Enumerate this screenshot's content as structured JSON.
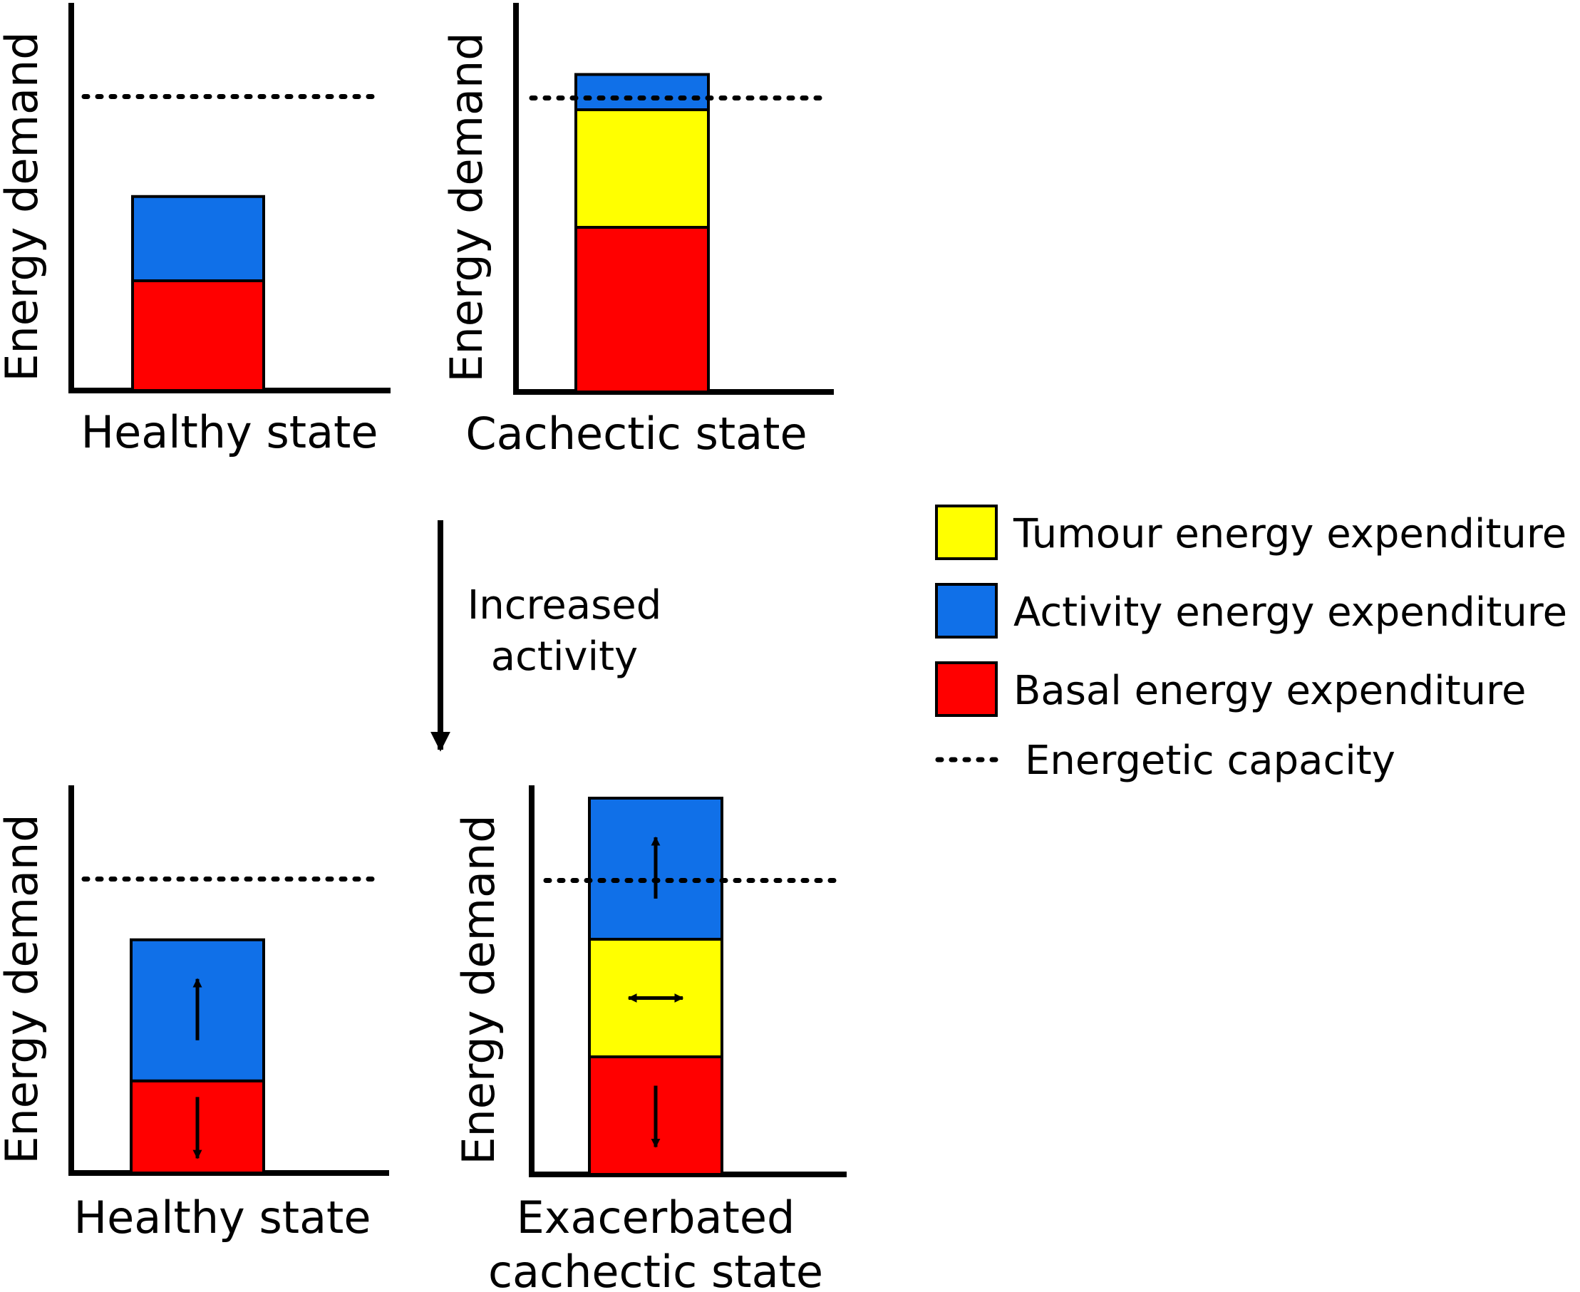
{
  "colors": {
    "tumour": "#ffff00",
    "activity": "#1070e8",
    "basal": "#ff0000",
    "ink": "#000000"
  },
  "chart_data": [
    {
      "type": "bar",
      "stacked": true,
      "title": "",
      "ylabel": "Energy demand",
      "xlabel_lines": [
        "Healthy state"
      ],
      "ylim": [
        0,
        100
      ],
      "capacity": 75,
      "stack": [
        {
          "component": "basal",
          "value": 28,
          "change": "none"
        },
        {
          "component": "activity",
          "value": 21.5,
          "change": "none"
        }
      ]
    },
    {
      "type": "bar",
      "stacked": true,
      "title": "",
      "ylabel": "Energy demand",
      "xlabel_lines": [
        "Cachectic state"
      ],
      "ylim": [
        0,
        100
      ],
      "capacity": 75,
      "stack": [
        {
          "component": "basal",
          "value": 42,
          "change": "none"
        },
        {
          "component": "tumour",
          "value": 30,
          "change": "none"
        },
        {
          "component": "activity",
          "value": 9,
          "change": "none"
        }
      ]
    },
    {
      "type": "bar",
      "stacked": true,
      "title": "",
      "ylabel": "Energy demand",
      "xlabel_lines": [
        "Healthy state"
      ],
      "ylim": [
        0,
        100
      ],
      "capacity": 75,
      "stack": [
        {
          "component": "basal",
          "value": 23.5,
          "change": "decrease"
        },
        {
          "component": "activity",
          "value": 36,
          "change": "increase"
        }
      ]
    },
    {
      "type": "bar",
      "stacked": true,
      "title": "",
      "ylabel": "Energy demand",
      "xlabel_lines": [
        "Exacerbated",
        "cachectic state"
      ],
      "ylim": [
        0,
        100
      ],
      "capacity": 75,
      "stack": [
        {
          "component": "basal",
          "value": 30,
          "change": "decrease"
        },
        {
          "component": "tumour",
          "value": 30,
          "change": "unchanged"
        },
        {
          "component": "activity",
          "value": 36,
          "change": "increase"
        }
      ]
    }
  ],
  "transition": {
    "label_lines": [
      "Increased",
      "activity"
    ]
  },
  "legend": {
    "items": [
      {
        "component": "tumour",
        "kind": "swatch",
        "label": "Tumour energy expenditure"
      },
      {
        "component": "activity",
        "kind": "swatch",
        "label": "Activity energy expenditure"
      },
      {
        "component": "basal",
        "kind": "swatch",
        "label": "Basal energy expenditure"
      },
      {
        "component": "capacity",
        "kind": "dotted",
        "label": "Energetic capacity"
      }
    ]
  }
}
